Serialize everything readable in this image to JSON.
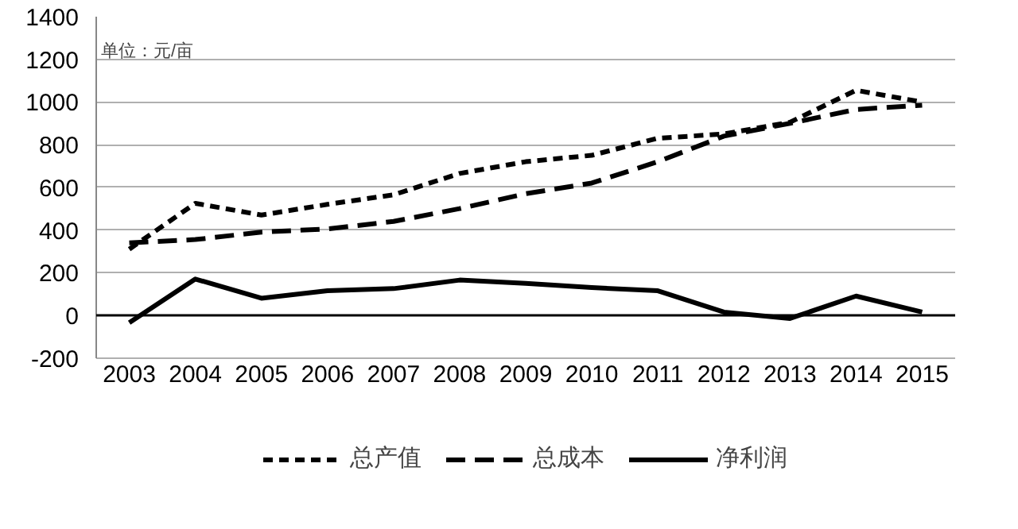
{
  "chart_data": {
    "type": "line",
    "categories": [
      "2003",
      "2004",
      "2005",
      "2006",
      "2007",
      "2008",
      "2009",
      "2010",
      "2011",
      "2012",
      "2013",
      "2014",
      "2015"
    ],
    "series": [
      {
        "name": "总产值",
        "color": "#000000",
        "line_style": "dotted",
        "values": [
          310,
          525,
          470,
          520,
          565,
          665,
          720,
          750,
          830,
          850,
          905,
          1055,
          1000
        ]
      },
      {
        "name": "总成本",
        "color": "#000000",
        "line_style": "dashed",
        "values": [
          340,
          355,
          390,
          405,
          440,
          500,
          570,
          620,
          720,
          840,
          900,
          965,
          985
        ]
      },
      {
        "name": "净利润",
        "color": "#000000",
        "line_style": "solid",
        "values": [
          -35,
          170,
          80,
          115,
          125,
          165,
          150,
          130,
          115,
          15,
          -15,
          90,
          15
        ]
      }
    ],
    "ylim": [
      -200,
      1400
    ],
    "yticks": [
      -200,
      0,
      200,
      400,
      600,
      800,
      1000,
      1200,
      1400
    ],
    "grid": "y",
    "legend": "bottom",
    "marker": "none",
    "annotations": [
      "单位：元/亩"
    ]
  }
}
